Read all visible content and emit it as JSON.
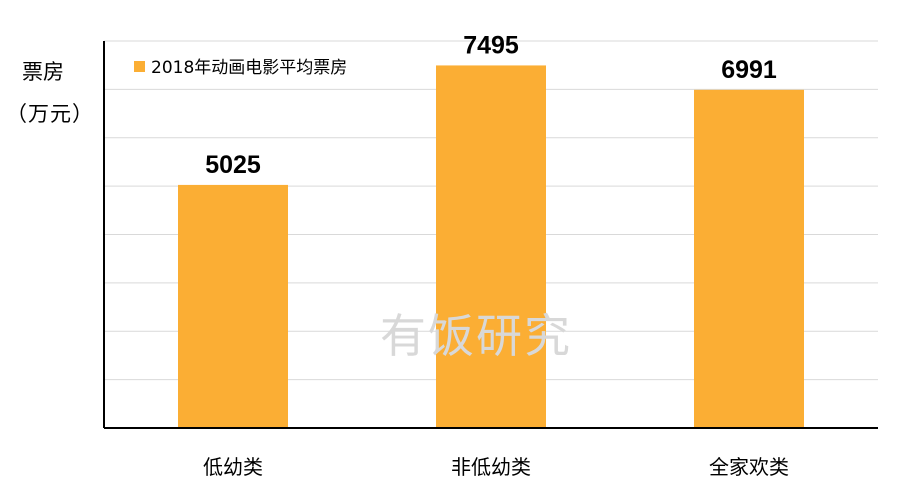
{
  "ylabel_line1": "票房",
  "ylabel_line2": "（万元）",
  "watermark": "有饭研究",
  "chart_data": {
    "type": "bar",
    "categories": [
      "低幼类",
      "非低幼类",
      "全家欢类"
    ],
    "series": [
      {
        "name": "2018年动画电影平均票房",
        "values": [
          5025,
          7495,
          6991
        ]
      }
    ],
    "ylim": [
      0,
      8000
    ],
    "grid": true,
    "legend_position": "top-left",
    "bar_color": "#FBAE34",
    "grid_color": "#d9d9d9"
  }
}
